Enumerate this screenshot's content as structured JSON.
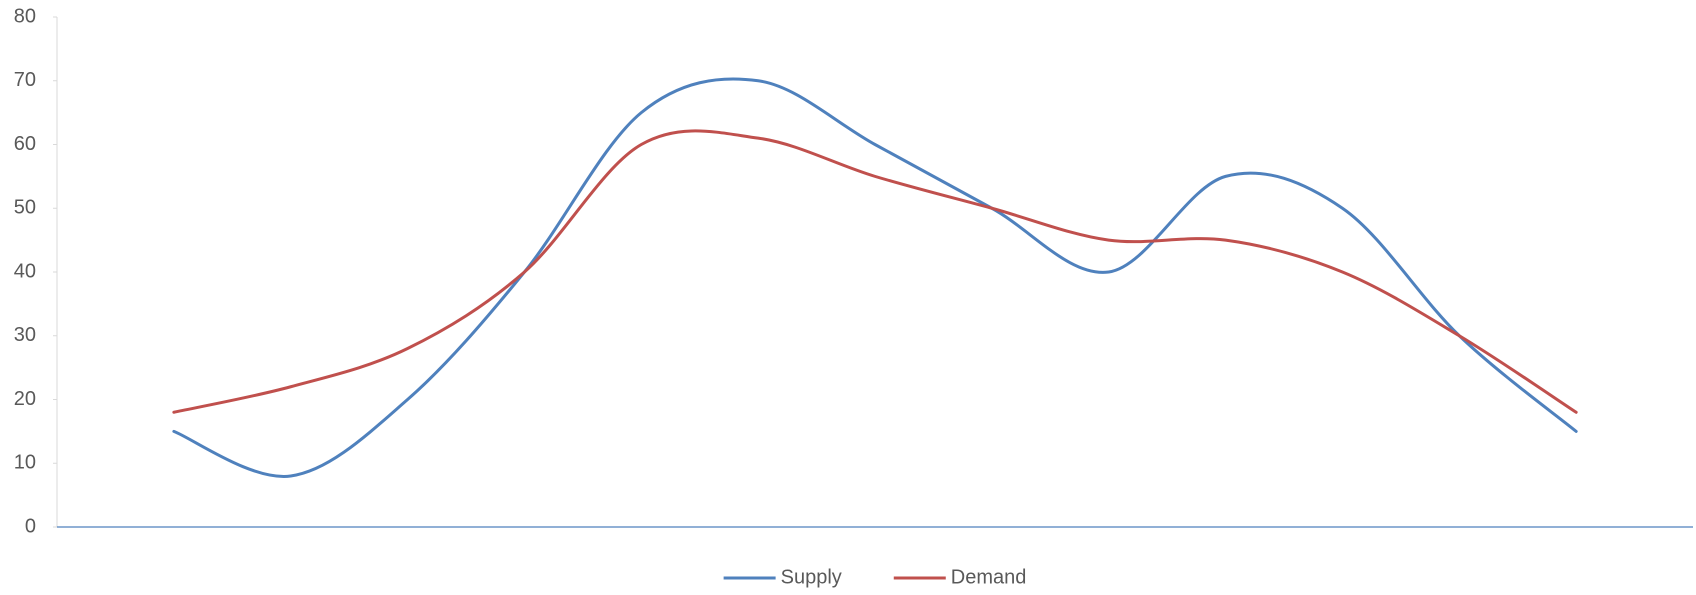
{
  "chart_data": {
    "type": "line",
    "categories": [
      null,
      null,
      null,
      null,
      null,
      null,
      null,
      null,
      null,
      null,
      null,
      null,
      null
    ],
    "series": [
      {
        "name": "Supply",
        "color": "#4f81bd",
        "values": [
          15,
          8,
          20,
          40,
          65,
          70,
          60,
          50,
          40,
          55,
          50,
          30,
          15
        ]
      },
      {
        "name": "Demand",
        "color": "#c0504d",
        "values": [
          18,
          22,
          28,
          40,
          60,
          61,
          55,
          50,
          45,
          45,
          40,
          30,
          18
        ]
      }
    ],
    "ylim": [
      0,
      80
    ],
    "yticks": [
      0,
      10,
      20,
      30,
      40,
      50,
      60,
      70,
      80
    ],
    "smooth": true,
    "grid": false,
    "legend": "bottom"
  }
}
